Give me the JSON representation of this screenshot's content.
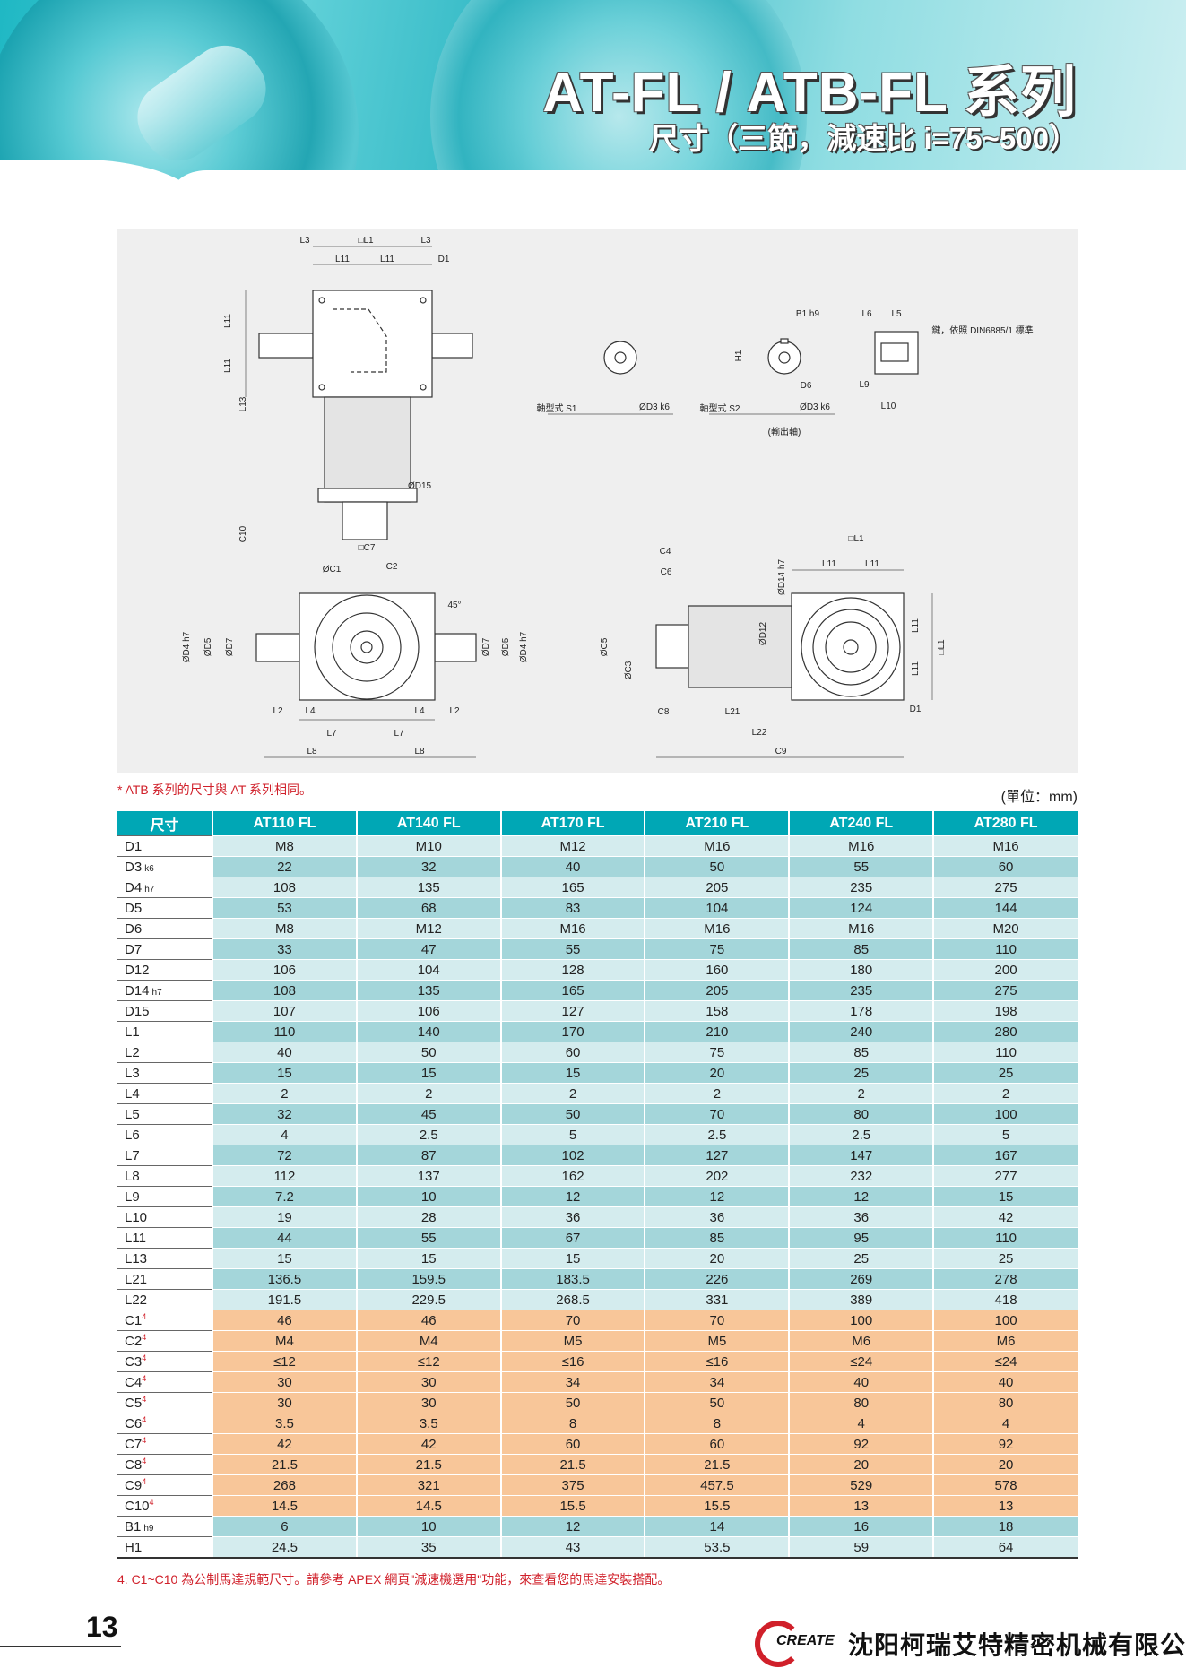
{
  "header": {
    "title": "AT-FL / ATB-FL 系列",
    "subtitle": "尺寸（三節，減速比 i=75~500）"
  },
  "drawing": {
    "labels": [
      "L3",
      "□L1",
      "L3",
      "L11",
      "L11",
      "D1",
      "L11",
      "L11",
      "L13",
      "ØD15",
      "C10",
      "□C7",
      "ØC1",
      "C2",
      "45°",
      "ØD4 h7",
      "ØD5",
      "ØD7",
      "ØD7",
      "ØD5",
      "ØD4 h7",
      "L2",
      "L4",
      "L4",
      "L2",
      "L7",
      "L7",
      "L8",
      "L8",
      "軸型式  S1",
      "ØD3 k6",
      "軸型式  S2",
      "ØD3 k6",
      "(輸出軸)",
      "B1 h9",
      "H1",
      "D6",
      "L6",
      "L5",
      "鍵，依照 DIN6885/1 標準",
      "L9",
      "L10",
      "C4",
      "C6",
      "ØC5",
      "ØC3",
      "C8",
      "L21",
      "L22",
      "C9",
      "ØD14 h7",
      "ØD12",
      "□L1",
      "L11",
      "L11",
      "L11",
      "L11",
      "□L1",
      "D1"
    ]
  },
  "notes": {
    "atb": "* ATB 系列的尺寸與 AT 系列相同。",
    "unit": "(單位：mm)",
    "note4": "4. C1~C10 為公制馬達規範尺寸。請參考 APEX 網頁\"減速機選用\"功能，來查看您的馬達安裝搭配。"
  },
  "table": {
    "corner": "尺寸",
    "columns": [
      "AT110 FL",
      "AT140 FL",
      "AT170 FL",
      "AT210 FL",
      "AT240 FL",
      "AT280 FL"
    ],
    "rows": [
      {
        "label": "D1",
        "values": [
          "M8",
          "M10",
          "M12",
          "M16",
          "M16",
          "M16"
        ]
      },
      {
        "label": "D3",
        "sub": "k6",
        "values": [
          "22",
          "32",
          "40",
          "50",
          "55",
          "60"
        ]
      },
      {
        "label": "D4",
        "sub": "h7",
        "values": [
          "108",
          "135",
          "165",
          "205",
          "235",
          "275"
        ]
      },
      {
        "label": "D5",
        "values": [
          "53",
          "68",
          "83",
          "104",
          "124",
          "144"
        ]
      },
      {
        "label": "D6",
        "values": [
          "M8",
          "M12",
          "M16",
          "M16",
          "M16",
          "M20"
        ]
      },
      {
        "label": "D7",
        "values": [
          "33",
          "47",
          "55",
          "75",
          "85",
          "110"
        ]
      },
      {
        "label": "D12",
        "values": [
          "106",
          "104",
          "128",
          "160",
          "180",
          "200"
        ]
      },
      {
        "label": "D14",
        "sub": "h7",
        "values": [
          "108",
          "135",
          "165",
          "205",
          "235",
          "275"
        ]
      },
      {
        "label": "D15",
        "values": [
          "107",
          "106",
          "127",
          "158",
          "178",
          "198"
        ]
      },
      {
        "label": "L1",
        "values": [
          "110",
          "140",
          "170",
          "210",
          "240",
          "280"
        ]
      },
      {
        "label": "L2",
        "values": [
          "40",
          "50",
          "60",
          "75",
          "85",
          "110"
        ]
      },
      {
        "label": "L3",
        "values": [
          "15",
          "15",
          "15",
          "20",
          "25",
          "25"
        ]
      },
      {
        "label": "L4",
        "values": [
          "2",
          "2",
          "2",
          "2",
          "2",
          "2"
        ]
      },
      {
        "label": "L5",
        "values": [
          "32",
          "45",
          "50",
          "70",
          "80",
          "100"
        ]
      },
      {
        "label": "L6",
        "values": [
          "4",
          "2.5",
          "5",
          "2.5",
          "2.5",
          "5"
        ]
      },
      {
        "label": "L7",
        "values": [
          "72",
          "87",
          "102",
          "127",
          "147",
          "167"
        ]
      },
      {
        "label": "L8",
        "values": [
          "112",
          "137",
          "162",
          "202",
          "232",
          "277"
        ]
      },
      {
        "label": "L9",
        "values": [
          "7.2",
          "10",
          "12",
          "12",
          "12",
          "15"
        ]
      },
      {
        "label": "L10",
        "values": [
          "19",
          "28",
          "36",
          "36",
          "36",
          "42"
        ]
      },
      {
        "label": "L11",
        "values": [
          "44",
          "55",
          "67",
          "85",
          "95",
          "110"
        ]
      },
      {
        "label": "L13",
        "values": [
          "15",
          "15",
          "15",
          "20",
          "25",
          "25"
        ]
      },
      {
        "label": "L21",
        "values": [
          "136.5",
          "159.5",
          "183.5",
          "226",
          "269",
          "278"
        ]
      },
      {
        "label": "L22",
        "values": [
          "191.5",
          "229.5",
          "268.5",
          "331",
          "389",
          "418"
        ]
      },
      {
        "label": "C1",
        "sup": "4",
        "values": [
          "46",
          "46",
          "70",
          "70",
          "100",
          "100"
        ]
      },
      {
        "label": "C2",
        "sup": "4",
        "values": [
          "M4",
          "M4",
          "M5",
          "M5",
          "M6",
          "M6"
        ]
      },
      {
        "label": "C3",
        "sup": "4",
        "values": [
          "≤12",
          "≤12",
          "≤16",
          "≤16",
          "≤24",
          "≤24"
        ]
      },
      {
        "label": "C4",
        "sup": "4",
        "values": [
          "30",
          "30",
          "34",
          "34",
          "40",
          "40"
        ]
      },
      {
        "label": "C5",
        "sup": "4",
        "values": [
          "30",
          "30",
          "50",
          "50",
          "80",
          "80"
        ]
      },
      {
        "label": "C6",
        "sup": "4",
        "values": [
          "3.5",
          "3.5",
          "8",
          "8",
          "4",
          "4"
        ]
      },
      {
        "label": "C7",
        "sup": "4",
        "values": [
          "42",
          "42",
          "60",
          "60",
          "92",
          "92"
        ]
      },
      {
        "label": "C8",
        "sup": "4",
        "values": [
          "21.5",
          "21.5",
          "21.5",
          "21.5",
          "20",
          "20"
        ]
      },
      {
        "label": "C9",
        "sup": "4",
        "values": [
          "268",
          "321",
          "375",
          "457.5",
          "529",
          "578"
        ]
      },
      {
        "label": "C10",
        "sup": "4",
        "values": [
          "14.5",
          "14.5",
          "15.5",
          "15.5",
          "13",
          "13"
        ]
      },
      {
        "label": "B1",
        "sub": "h9",
        "values": [
          "6",
          "10",
          "12",
          "14",
          "16",
          "18"
        ]
      },
      {
        "label": "H1",
        "values": [
          "24.5",
          "35",
          "43",
          "53.5",
          "59",
          "64"
        ]
      }
    ]
  },
  "colors": {
    "header": "#00a7b5",
    "row_light": "#d4ecee",
    "row_dark": "#a4d6da",
    "row_motor": "#f8c699",
    "note": "#d0202a"
  },
  "footer": {
    "page_number": "13",
    "logo_text": "CREATE",
    "company": "沈阳柯瑞艾特精密机械有限公司"
  }
}
